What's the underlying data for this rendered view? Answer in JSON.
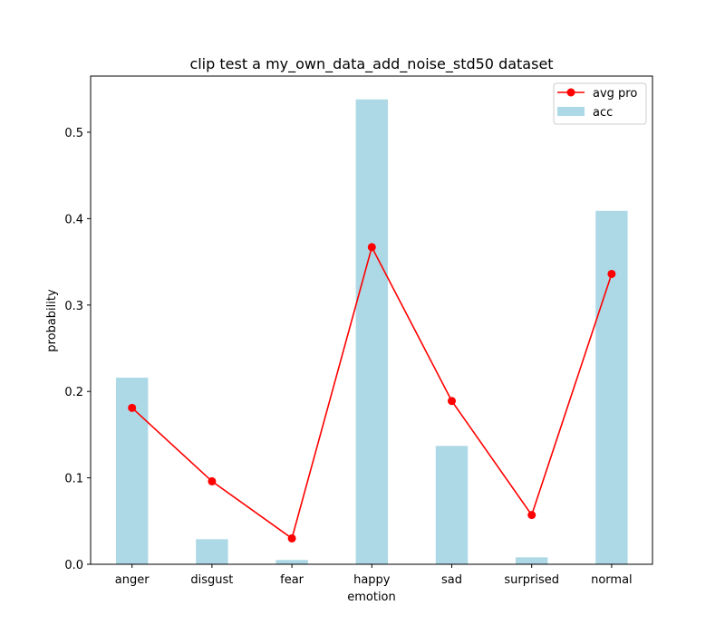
{
  "chart_data": {
    "type": "bar",
    "title": "clip test a my_own_data_add_noise_std50 dataset",
    "xlabel": "emotion",
    "ylabel": "probability",
    "categories": [
      "anger",
      "disgust",
      "fear",
      "happy",
      "sad",
      "surprised",
      "normal"
    ],
    "ylim": [
      0,
      0.565
    ],
    "yticks": [
      "0.0",
      "0.1",
      "0.2",
      "0.3",
      "0.4",
      "0.5"
    ],
    "grid": false,
    "legend_position": "top-right",
    "series": [
      {
        "name": "acc",
        "kind": "bar",
        "color": "#add8e6",
        "values": [
          0.216,
          0.029,
          0.005,
          0.538,
          0.137,
          0.008,
          0.409
        ]
      },
      {
        "name": "avg pro",
        "kind": "line",
        "marker": "circle",
        "color": "#ff0000",
        "values": [
          0.181,
          0.096,
          0.03,
          0.367,
          0.189,
          0.057,
          0.336
        ]
      }
    ]
  }
}
